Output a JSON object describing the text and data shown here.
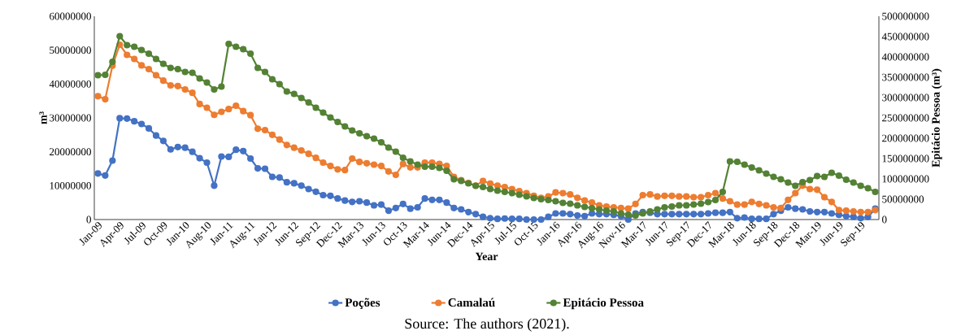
{
  "chart_data": {
    "type": "line",
    "xlabel": "Year",
    "ylabel": "m³",
    "y2label": "Epitácio Pessoa (m³)",
    "annotations": [
      "Source: The authors (2021)."
    ],
    "legend": "bottom",
    "marker": "circle",
    "categories": [
      "Jan-09",
      null,
      null,
      "Apr-09",
      null,
      null,
      "Jul-09",
      null,
      null,
      "Oct-09",
      null,
      null,
      "Jan-10",
      null,
      null,
      "Aug-10",
      null,
      null,
      "Jan-11",
      null,
      null,
      "Aug-11",
      null,
      null,
      "Jan-12",
      null,
      null,
      "Jun-12",
      null,
      null,
      "Sep-12",
      null,
      null,
      "Dec-12",
      null,
      null,
      "Mar-13",
      null,
      null,
      "Jun-13",
      null,
      null,
      "Oct-13",
      null,
      null,
      "Mar-14",
      null,
      null,
      "Jun-14",
      null,
      null,
      "Dec-14",
      null,
      null,
      "Apr-15",
      null,
      null,
      "Jul-15",
      null,
      null,
      "Oct-15",
      null,
      null,
      "Jan-16",
      null,
      null,
      "Apr-16",
      null,
      null,
      "Aug-16",
      null,
      null,
      "Nov-16",
      null,
      null,
      "Mar-17",
      null,
      null,
      "Jun-17",
      null,
      null,
      "Sep-17",
      null,
      null,
      "Dec-17",
      null,
      null,
      "Mar-18",
      null,
      null,
      "Jun-18",
      null,
      null,
      "Sep-18",
      null,
      null,
      "Dec-18",
      null,
      null,
      "Mar-19",
      null,
      null,
      "Jun-19",
      null,
      null,
      "Sep-19",
      null,
      null
    ],
    "ylim": [
      0,
      60000000
    ],
    "yticks": [
      0,
      10000000,
      20000000,
      30000000,
      40000000,
      50000000,
      60000000
    ],
    "y2lim": [
      0,
      500000000
    ],
    "y2ticks": [
      0,
      50000000,
      100000000,
      150000000,
      200000000,
      250000000,
      300000000,
      350000000,
      400000000,
      450000000,
      500000000
    ],
    "series": [
      {
        "name": "Poções",
        "color": "#4472c4",
        "values": [
          13600000,
          13000000,
          17400000,
          29900000,
          29800000,
          29000000,
          28200000,
          26900000,
          24800000,
          23200000,
          20700000,
          21400000,
          21200000,
          20000000,
          18100000,
          16800000,
          10000000,
          18600000,
          18500000,
          20600000,
          20200000,
          18000000,
          15100000,
          15000000,
          12600000,
          12400000,
          11000000,
          10700000,
          10000000,
          9000000,
          8200000,
          7200000,
          7000000,
          6200000,
          5600000,
          5200000,
          5400000,
          5000000,
          4200000,
          4400000,
          2600000,
          3400000,
          4600000,
          3200000,
          3600000,
          6200000,
          5800000,
          5800000,
          5000000,
          3400000,
          3000000,
          2200000,
          1600000,
          800000,
          400000,
          200000,
          300000,
          200000,
          200000,
          0,
          0,
          0,
          800000,
          1800000,
          1800000,
          1600000,
          1200000,
          1000000,
          1800000,
          1600000,
          1600000,
          1400000,
          1000000,
          0,
          1800000,
          2200000,
          2000000,
          1600000,
          1600000,
          1600000,
          1600000,
          1600000,
          1600000,
          1600000,
          1800000,
          2000000,
          2000000,
          2200000,
          400000,
          600000,
          200000,
          200000,
          200000,
          1600000,
          2600000,
          3600000,
          3200000,
          3000000,
          2400000,
          2200000,
          2200000,
          1800000,
          1400000,
          1000000,
          800000,
          400000,
          800000,
          3200000
        ]
      },
      {
        "name": "Camalaú",
        "color": "#ed7d31",
        "values": [
          36400000,
          35500000,
          45400000,
          51600000,
          48600000,
          47400000,
          45500000,
          44400000,
          42600000,
          41000000,
          39600000,
          39400000,
          38400000,
          37400000,
          34100000,
          33000000,
          30900000,
          31800000,
          32600000,
          33600000,
          32000000,
          30800000,
          26800000,
          26400000,
          25000000,
          23600000,
          22000000,
          21200000,
          20400000,
          19400000,
          18200000,
          16800000,
          15800000,
          14800000,
          14600000,
          18000000,
          17000000,
          16600000,
          16200000,
          15800000,
          14200000,
          13200000,
          16400000,
          15400000,
          15400000,
          16800000,
          16800000,
          16400000,
          15800000,
          12600000,
          11600000,
          10800000,
          10000000,
          11400000,
          10600000,
          10000000,
          9600000,
          9000000,
          8400000,
          7800000,
          7000000,
          6400000,
          6800000,
          8000000,
          7800000,
          7400000,
          6400000,
          5600000,
          5000000,
          4200000,
          3800000,
          3600000,
          3400000,
          3200000,
          4600000,
          7200000,
          7400000,
          6800000,
          7000000,
          7000000,
          6800000,
          6800000,
          6600000,
          6600000,
          7200000,
          7800000,
          6200000,
          5400000,
          4400000,
          4400000,
          5200000,
          4600000,
          4200000,
          3600000,
          3400000,
          5800000,
          7800000,
          10000000,
          9000000,
          8800000,
          6600000,
          5200000,
          2800000,
          2600000,
          2400000,
          2200000,
          2200000,
          2800000
        ]
      },
      {
        "name": "Epitácio Pessoa",
        "color": "#548235",
        "axis": "y2",
        "values": [
          355000000,
          356000000,
          388000000,
          451000000,
          429000000,
          425000000,
          417000000,
          408000000,
          395000000,
          383000000,
          373000000,
          370000000,
          363000000,
          361000000,
          347000000,
          337000000,
          320000000,
          327000000,
          432000000,
          425000000,
          419000000,
          408000000,
          373000000,
          363000000,
          345000000,
          333000000,
          315000000,
          309000000,
          299000000,
          288000000,
          275000000,
          263000000,
          251000000,
          240000000,
          229000000,
          219000000,
          212000000,
          205000000,
          199000000,
          190000000,
          177000000,
          167000000,
          152000000,
          143000000,
          135000000,
          130000000,
          130000000,
          127000000,
          120000000,
          99000000,
          95000000,
          89000000,
          83000000,
          80000000,
          75000000,
          71000000,
          68000000,
          65000000,
          61000000,
          57000000,
          53000000,
          50000000,
          48000000,
          45000000,
          41000000,
          39000000,
          35000000,
          31000000,
          28000000,
          25000000,
          22000000,
          20000000,
          15000000,
          12000000,
          10000000,
          15000000,
          20000000,
          25000000,
          30000000,
          32000000,
          35000000,
          35000000,
          37000000,
          39000000,
          43000000,
          48000000,
          68000000,
          143000000,
          142000000,
          135000000,
          128000000,
          121000000,
          113000000,
          105000000,
          99000000,
          91000000,
          83000000,
          92000000,
          97000000,
          107000000,
          105000000,
          115000000,
          108000000,
          98000000,
          91000000,
          83000000,
          77000000,
          68000000
        ]
      }
    ]
  }
}
